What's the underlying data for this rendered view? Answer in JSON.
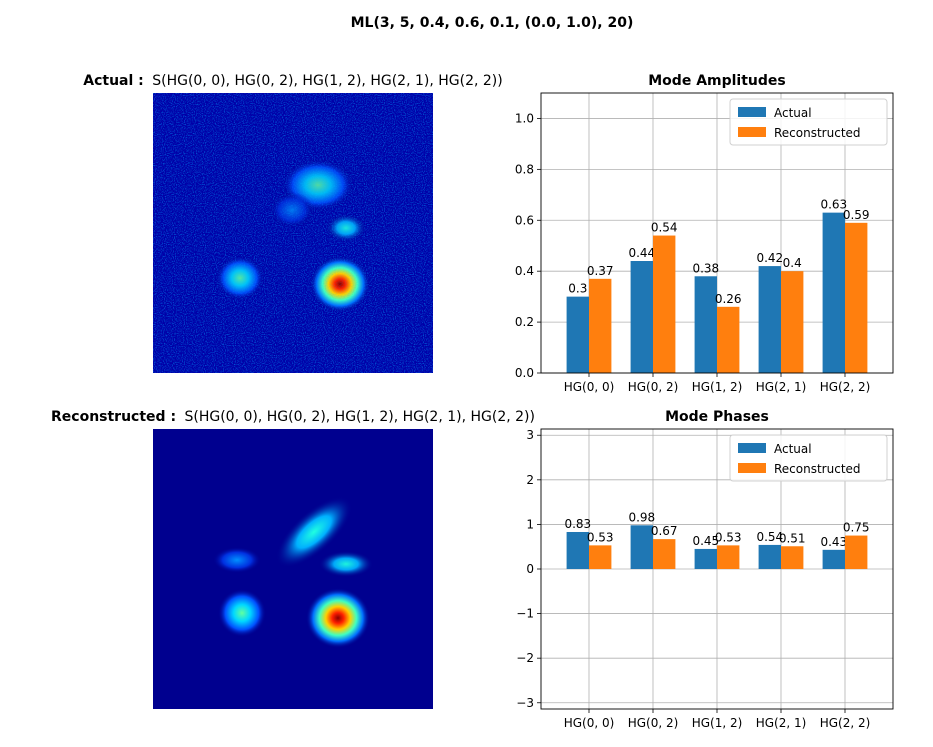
{
  "figure": {
    "suptitle": "ML(3, 5, 0.4, 0.6, 0.1, (0.0, 1.0), 20)"
  },
  "images": {
    "actual": {
      "title_prefix": "Actual :",
      "title_text": "S(HG(0, 0), HG(0, 2), HG(1, 2), HG(2, 1), HG(2, 2))",
      "style": "noisy intensity map",
      "colormap": "jet"
    },
    "reconstructed": {
      "title_prefix": "Reconstructed :",
      "title_text": "S(HG(0, 0), HG(0, 2), HG(1, 2), HG(2, 1), HG(2, 2))",
      "style": "smooth intensity map",
      "colormap": "jet"
    }
  },
  "chart_data": [
    {
      "type": "bar",
      "title": "Mode Amplitudes",
      "categories": [
        "HG(0, 0)",
        "HG(0, 2)",
        "HG(1, 2)",
        "HG(2, 1)",
        "HG(2, 2)"
      ],
      "series": [
        {
          "name": "Actual",
          "color": "#1f77b4",
          "values": [
            0.3,
            0.44,
            0.38,
            0.42,
            0.63
          ],
          "labels": [
            "0.3",
            "0.44",
            "0.38",
            "0.42",
            "0.63"
          ]
        },
        {
          "name": "Reconstructed",
          "color": "#ff7f0e",
          "values": [
            0.37,
            0.54,
            0.26,
            0.4,
            0.59
          ],
          "labels": [
            "0.37",
            "0.54",
            "0.26",
            "0.4",
            "0.59"
          ]
        }
      ],
      "ylim": [
        0,
        1.1
      ],
      "yticks": [
        0.0,
        0.2,
        0.4,
        0.6,
        0.8,
        1.0
      ],
      "ytick_labels": [
        "0.0",
        "0.2",
        "0.4",
        "0.6",
        "0.8",
        "1.0"
      ],
      "grid": true,
      "legend": "top-right"
    },
    {
      "type": "bar",
      "title": "Mode Phases",
      "categories": [
        "HG(0, 0)",
        "HG(0, 2)",
        "HG(1, 2)",
        "HG(2, 1)",
        "HG(2, 2)"
      ],
      "series": [
        {
          "name": "Actual",
          "color": "#1f77b4",
          "values": [
            0.83,
            0.98,
            0.45,
            0.54,
            0.43
          ],
          "labels": [
            "0.83",
            "0.98",
            "0.45",
            "0.54",
            "0.43"
          ]
        },
        {
          "name": "Reconstructed",
          "color": "#ff7f0e",
          "values": [
            0.53,
            0.67,
            0.53,
            0.51,
            0.75
          ],
          "labels": [
            "0.53",
            "0.67",
            "0.53",
            "0.51",
            "0.75"
          ]
        }
      ],
      "ylim": [
        -3.14,
        3.14
      ],
      "yticks": [
        -3,
        -2,
        -1,
        0,
        1,
        2,
        3
      ],
      "ytick_labels": [
        "−3",
        "−2",
        "−1",
        "0",
        "1",
        "2",
        "3"
      ],
      "grid": true,
      "legend": "top-right"
    }
  ]
}
